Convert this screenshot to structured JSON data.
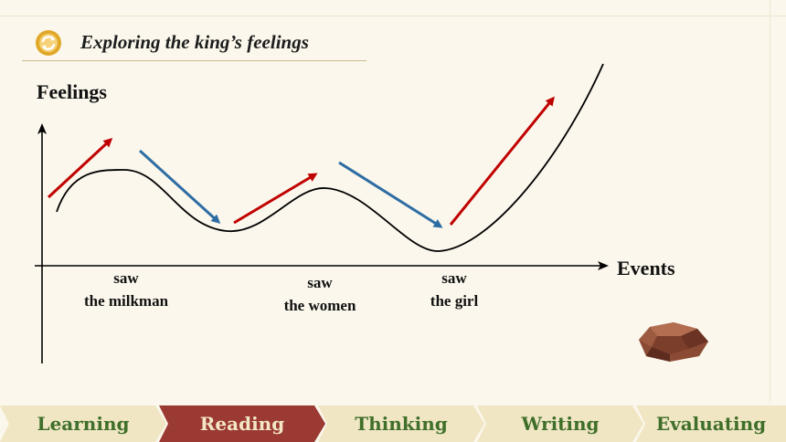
{
  "header": {
    "title": "Exploring the king’s feelings",
    "icon": "circular-arrows-icon"
  },
  "diagram": {
    "y_axis_label": "Feelings",
    "x_axis_label": "Events",
    "events": [
      {
        "line1": "saw",
        "line2": "the milkman"
      },
      {
        "line1": "saw",
        "line2": "the women"
      },
      {
        "line1": "saw",
        "line2": "the girl"
      }
    ],
    "colors": {
      "rising": "#c00000",
      "falling": "#2e6da4",
      "curve": "#000000"
    }
  },
  "nav": {
    "tabs": [
      "Learning",
      "Reading",
      "Thinking",
      "Writing",
      "Evaluating"
    ],
    "active": "Reading",
    "colors": {
      "active_bg": "#9b3a33",
      "inactive_bg": "#f0e6c4",
      "inactive_text": "#3f6f2a",
      "active_text": "#f3e7c6"
    }
  }
}
